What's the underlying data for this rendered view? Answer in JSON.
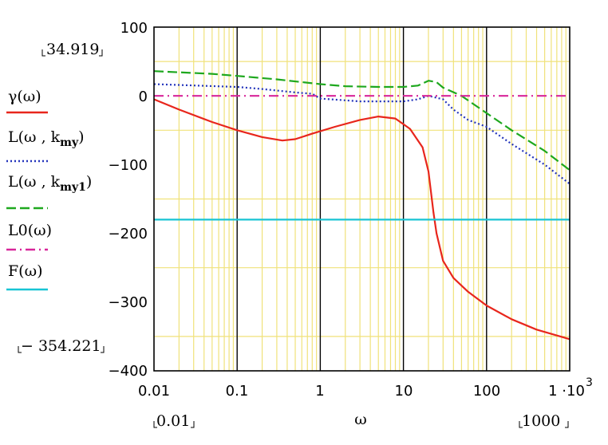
{
  "chart_data": {
    "type": "line",
    "xscale": "log",
    "xlim": [
      0.01,
      1000
    ],
    "ylim": [
      -400,
      100
    ],
    "xticks": [
      "0.01",
      "0.1",
      "1",
      "10",
      "100",
      "1 ·10"
    ],
    "xtick_exp": "3",
    "yticks": [
      "100",
      "0",
      "−100",
      "−200",
      "−300",
      "−400"
    ],
    "xlabel": "ω",
    "range_labels": {
      "y_max": "34.919",
      "y_min": "− 354.221",
      "x_min": "0.01",
      "x_max": "1000"
    },
    "series": [
      {
        "name": "γ(ω)",
        "color": "#e8261c",
        "style": "solid",
        "points": [
          [
            0.01,
            -5
          ],
          [
            0.02,
            -20
          ],
          [
            0.05,
            -38
          ],
          [
            0.1,
            -50
          ],
          [
            0.2,
            -60
          ],
          [
            0.35,
            -65
          ],
          [
            0.5,
            -63
          ],
          [
            0.8,
            -55
          ],
          [
            1.5,
            -45
          ],
          [
            3,
            -35
          ],
          [
            5,
            -30
          ],
          [
            8,
            -33
          ],
          [
            12,
            -48
          ],
          [
            17,
            -75
          ],
          [
            20,
            -110
          ],
          [
            23,
            -170
          ],
          [
            25,
            -200
          ],
          [
            30,
            -240
          ],
          [
            40,
            -265
          ],
          [
            60,
            -285
          ],
          [
            100,
            -305
          ],
          [
            200,
            -325
          ],
          [
            400,
            -340
          ],
          [
            1000,
            -354
          ]
        ]
      },
      {
        "name": "L(ω,k.my)",
        "color": "#2233bb",
        "style": "dotted",
        "points": [
          [
            0.01,
            17
          ],
          [
            0.1,
            13
          ],
          [
            0.2,
            10
          ],
          [
            0.5,
            5
          ],
          [
            0.8,
            3
          ],
          [
            1,
            -4
          ],
          [
            3,
            -8
          ],
          [
            10,
            -8
          ],
          [
            15,
            -5
          ],
          [
            20,
            0
          ],
          [
            30,
            -5
          ],
          [
            40,
            -20
          ],
          [
            60,
            -35
          ],
          [
            100,
            -45
          ],
          [
            200,
            -70
          ],
          [
            500,
            -100
          ],
          [
            1000,
            -128
          ]
        ]
      },
      {
        "name": "L(ω,k.my1)",
        "color": "#1ea81e",
        "style": "dashed",
        "points": [
          [
            0.01,
            36
          ],
          [
            0.05,
            32
          ],
          [
            0.1,
            29
          ],
          [
            0.3,
            24
          ],
          [
            1,
            17
          ],
          [
            2,
            14
          ],
          [
            5,
            13
          ],
          [
            10,
            13
          ],
          [
            15,
            15
          ],
          [
            20,
            22
          ],
          [
            25,
            20
          ],
          [
            30,
            12
          ],
          [
            50,
            0
          ],
          [
            100,
            -25
          ],
          [
            200,
            -50
          ],
          [
            500,
            -80
          ],
          [
            1000,
            -108
          ]
        ]
      },
      {
        "name": "L0(ω)",
        "color": "#d8269a",
        "style": "dashdot",
        "points": [
          [
            0.01,
            0
          ],
          [
            1000,
            0
          ]
        ]
      },
      {
        "name": "F(ω)",
        "color": "#18c4d4",
        "style": "solid",
        "points": [
          [
            0.01,
            -180
          ],
          [
            1000,
            -180
          ]
        ]
      }
    ],
    "legend": [
      {
        "label": "γ(ω)",
        "color": "#e8261c",
        "style": "solid"
      },
      {
        "label": "L(ω , k",
        "sub": "my",
        "close": ")",
        "color": "#2233bb",
        "style": "dotted"
      },
      {
        "label": "L(ω , k",
        "sub": "my",
        "sub_tail": "1",
        "close": ")",
        "color": "#1ea81e",
        "style": "dashed"
      },
      {
        "label": "L0(ω)",
        "color": "#d8269a",
        "style": "dashdot"
      },
      {
        "label": "F(ω)",
        "color": "#18c4d4",
        "style": "solid"
      }
    ]
  }
}
